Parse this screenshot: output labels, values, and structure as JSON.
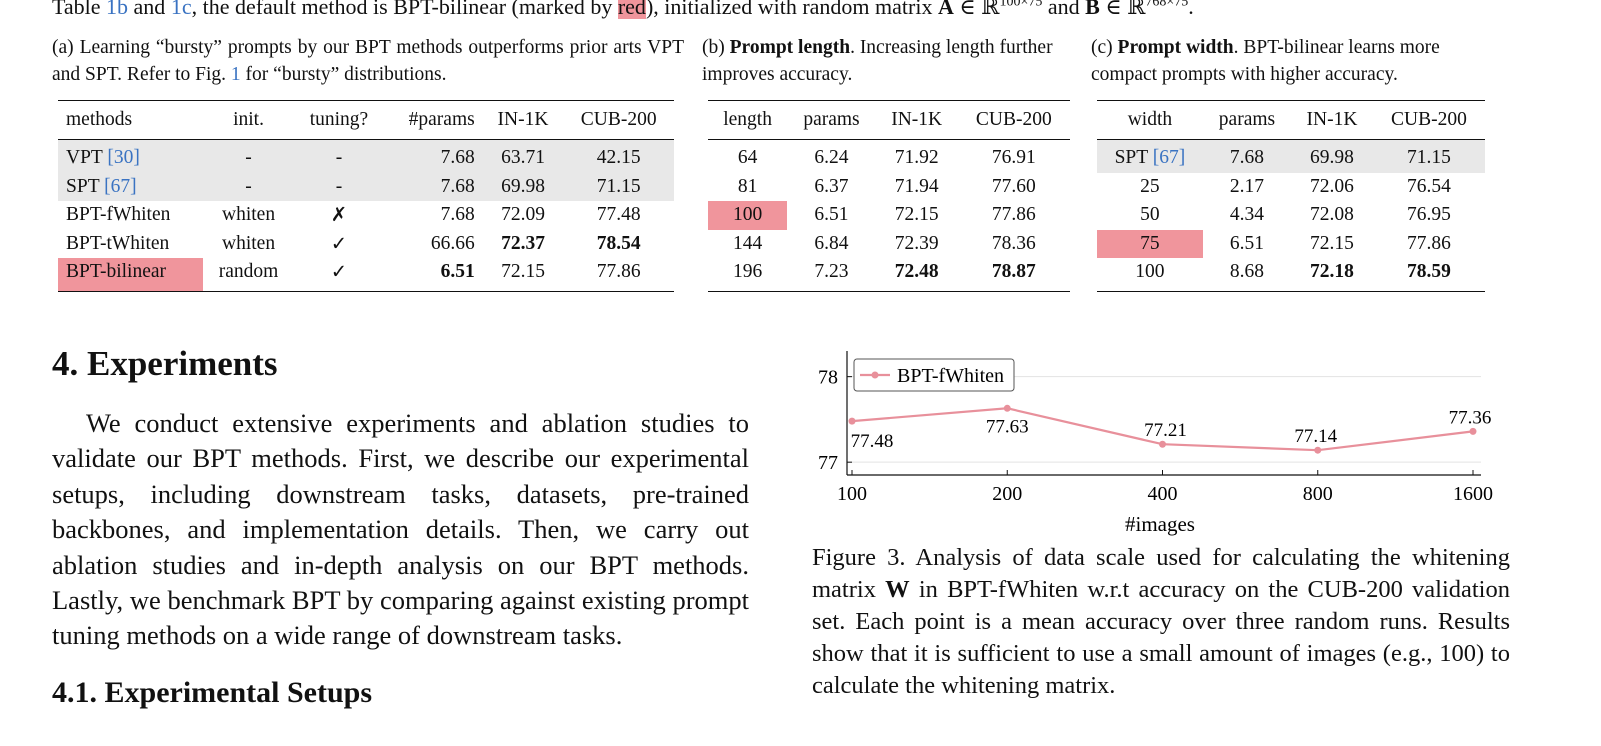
{
  "top_line": {
    "text_1": "Table ",
    "ref_1b": "1b",
    "text_2": " and ",
    "ref_1c": "1c",
    "text_3": ", the default method is BPT-bilinear (marked by ",
    "marker": "red",
    "text_4": "), initialized with random matrix ",
    "matrix_a": "A",
    "set_1": " ∈ ℝ",
    "exp_1": "100×75",
    "text_5": " and ",
    "matrix_b": "B",
    "set_2": " ∈ ℝ",
    "exp_2": "768×75",
    "end": "."
  },
  "tables": {
    "a": {
      "caption_prefix": "(a) Learning “bursty” prompts by our BPT methods outperforms prior arts VPT and SPT. Refer to Fig. ",
      "caption_ref": "1",
      "caption_suffix": " for “bursty” distributions.",
      "headers": [
        "methods",
        "init.",
        "tuning?",
        "#params",
        "IN-1K",
        "CUB-200"
      ],
      "rows": [
        {
          "method": "VPT ",
          "ref": "[30]",
          "init": "-",
          "tuning": "-",
          "params": "7.68",
          "in1k": "63.71",
          "cub": "42.15"
        },
        {
          "method": "SPT ",
          "ref": "[67]",
          "init": "-",
          "tuning": "-",
          "params": "7.68",
          "in1k": "69.98",
          "cub": "71.15"
        },
        {
          "method": "BPT-fWhiten",
          "ref": "",
          "init": "whiten",
          "tuning": "✗",
          "params": "7.68",
          "in1k": "72.09",
          "cub": "77.48"
        },
        {
          "method": "BPT-tWhiten",
          "ref": "",
          "init": "whiten",
          "tuning": "✓",
          "params": "66.66",
          "in1k": "72.37",
          "cub": "78.54"
        },
        {
          "method": "BPT-bilinear",
          "ref": "",
          "init": "random",
          "tuning": "✓",
          "params": "6.51",
          "in1k": "72.15",
          "cub": "77.86"
        }
      ]
    },
    "b": {
      "caption_prefix": "(b) ",
      "caption_bold": "Prompt length",
      "caption_suffix": ". Increasing length further improves accuracy.",
      "headers": [
        "length",
        "params",
        "IN-1K",
        "CUB-200"
      ],
      "rows": [
        [
          "64",
          "6.24",
          "71.92",
          "76.91"
        ],
        [
          "81",
          "6.37",
          "71.94",
          "77.60"
        ],
        [
          "100",
          "6.51",
          "72.15",
          "77.86"
        ],
        [
          "144",
          "6.84",
          "72.39",
          "78.36"
        ],
        [
          "196",
          "7.23",
          "72.48",
          "78.87"
        ]
      ]
    },
    "c": {
      "caption_prefix": "(c) ",
      "caption_bold": "Prompt width",
      "caption_suffix": ". BPT-bilinear learns more compact prompts with higher accuracy.",
      "headers": [
        "width",
        "params",
        "IN-1K",
        "CUB-200"
      ],
      "rows": [
        [
          "SPT ",
          "7.68",
          "69.98",
          "71.15"
        ],
        [
          "25",
          "2.17",
          "72.06",
          "76.54"
        ],
        [
          "50",
          "4.34",
          "72.08",
          "76.95"
        ],
        [
          "75",
          "6.51",
          "72.15",
          "77.86"
        ],
        [
          "100",
          "8.68",
          "72.18",
          "78.59"
        ]
      ],
      "spt_ref": "[67]"
    }
  },
  "section": {
    "heading": "4. Experiments",
    "paragraph": "We conduct extensive experiments and ablation studies to validate our BPT methods. First, we describe our experimental setups, including downstream tasks, datasets, pre-trained backbones, and implementation details. Then, we carry out ablation studies and in-depth analysis on our BPT methods. Lastly, we benchmark BPT by comparing against existing prompt tuning methods on a wide range of downstream tasks.",
    "subheading": "4.1. Experimental Setups"
  },
  "figure": {
    "caption_1": "Figure 3. Analysis of data scale used for calculating the whitening matrix ",
    "caption_math": "W",
    "caption_2": " in BPT-fWhiten w.r.t accuracy on the CUB-200 validation set.  Each point is a mean accuracy over three random runs. Results show that it is sufficient to use a small amount of images (e.g., 100) to calculate the whitening matrix."
  },
  "chart_data": {
    "type": "line",
    "categories": [
      "100",
      "200",
      "400",
      "800",
      "1600"
    ],
    "series": [
      {
        "name": "BPT-fWhiten",
        "values": [
          77.48,
          77.63,
          77.21,
          77.14,
          77.36
        ],
        "labels": [
          "77.48",
          "77.63",
          "77.21",
          "77.14",
          "77.36"
        ]
      }
    ],
    "title": "",
    "xlabel": "#images",
    "ylabel": "",
    "yticks": [
      "77",
      "78"
    ],
    "ylim": [
      76.85,
      78.3
    ],
    "grid": "horizontal",
    "legend": "top-left",
    "color": "#e8909b"
  }
}
